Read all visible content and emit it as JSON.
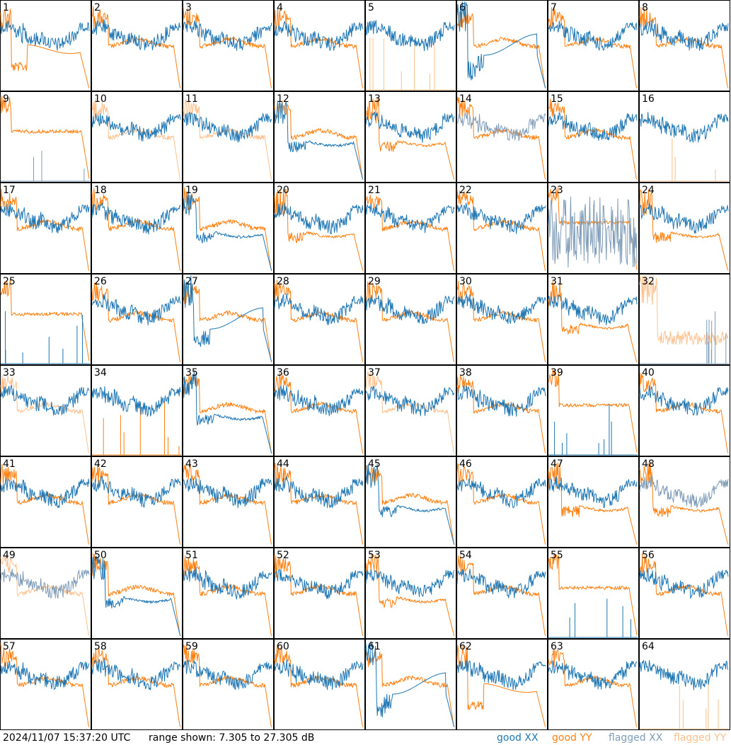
{
  "footer": {
    "timestamp": "2024/11/07 15:37:20 UTC",
    "range": "range shown: 7.305 to 27.305 dB"
  },
  "legend": [
    {
      "label": "good",
      "pol": "XX",
      "color": "#1f77b4"
    },
    {
      "label": "good",
      "pol": "YY",
      "color": "#ff7f0e"
    },
    {
      "label": "flagged",
      "pol": "XX",
      "color": "#7f9cb8"
    },
    {
      "label": "flagged",
      "pol": "YY",
      "color": "#ffc08c"
    }
  ],
  "colors": {
    "good_xx": "#1f77b4",
    "good_yy": "#ff7f0e",
    "flagged_xx": "#7f9cb8",
    "flagged_yy": "#ffc08c"
  },
  "chart_data": {
    "type": "line",
    "grid": "8x8 small multiples",
    "y_range_db": [
      7.305,
      27.305
    ],
    "panels": [
      {
        "label": "1",
        "xx": "good",
        "yy": "good",
        "xx_profile": "normal",
        "yy_profile": "dip_low"
      },
      {
        "label": "2",
        "xx": "good",
        "yy": "good",
        "xx_profile": "normal",
        "yy_profile": "normal"
      },
      {
        "label": "3",
        "xx": "good",
        "yy": "good",
        "xx_profile": "normal",
        "yy_profile": "normal"
      },
      {
        "label": "4",
        "xx": "good",
        "yy": "good",
        "xx_profile": "normal",
        "yy_profile": "normal"
      },
      {
        "label": "5",
        "xx": "good",
        "yy": "flagged",
        "xx_profile": "normal",
        "yy_profile": "spikes"
      },
      {
        "label": "6",
        "xx": "good",
        "yy": "good",
        "xx_profile": "dip_low",
        "yy_profile": "normal"
      },
      {
        "label": "7",
        "xx": "good",
        "yy": "good",
        "xx_profile": "normal",
        "yy_profile": "normal"
      },
      {
        "label": "8",
        "xx": "good",
        "yy": "good",
        "xx_profile": "normal",
        "yy_profile": "normal"
      },
      {
        "label": "9",
        "xx": "flagged",
        "yy": "good",
        "xx_profile": "spikes",
        "yy_profile": "flat_high"
      },
      {
        "label": "10",
        "xx": "good",
        "yy": "flagged",
        "xx_profile": "normal",
        "yy_profile": "normal"
      },
      {
        "label": "11",
        "xx": "good",
        "yy": "flagged",
        "xx_profile": "normal",
        "yy_profile": "normal"
      },
      {
        "label": "12",
        "xx": "good",
        "yy": "good",
        "xx_profile": "dip_mid",
        "yy_profile": "normal"
      },
      {
        "label": "13",
        "xx": "good",
        "yy": "good",
        "xx_profile": "normal",
        "yy_profile": "dip_mid"
      },
      {
        "label": "14",
        "xx": "flagged",
        "yy": "good",
        "xx_profile": "normal",
        "yy_profile": "normal"
      },
      {
        "label": "15",
        "xx": "good",
        "yy": "good",
        "xx_profile": "normal",
        "yy_profile": "normal"
      },
      {
        "label": "16",
        "xx": "good",
        "yy": "flagged",
        "xx_profile": "normal",
        "yy_profile": "spikes"
      },
      {
        "label": "17",
        "xx": "good",
        "yy": "good",
        "xx_profile": "normal",
        "yy_profile": "normal"
      },
      {
        "label": "18",
        "xx": "good",
        "yy": "good",
        "xx_profile": "normal",
        "yy_profile": "normal"
      },
      {
        "label": "19",
        "xx": "good",
        "yy": "good",
        "xx_profile": "dip_mid",
        "yy_profile": "normal"
      },
      {
        "label": "20",
        "xx": "good",
        "yy": "good",
        "xx_profile": "normal",
        "yy_profile": "dip_mid"
      },
      {
        "label": "21",
        "xx": "good",
        "yy": "good",
        "xx_profile": "normal",
        "yy_profile": "normal"
      },
      {
        "label": "22",
        "xx": "good",
        "yy": "good",
        "xx_profile": "normal",
        "yy_profile": "normal"
      },
      {
        "label": "23",
        "xx": "flagged",
        "yy": "good",
        "xx_profile": "noisy",
        "yy_profile": "flat_high"
      },
      {
        "label": "24",
        "xx": "good",
        "yy": "good",
        "xx_profile": "normal",
        "yy_profile": "dip_mid"
      },
      {
        "label": "25",
        "xx": "good",
        "yy": "good",
        "xx_profile": "spikes",
        "yy_profile": "flat_high"
      },
      {
        "label": "26",
        "xx": "good",
        "yy": "good",
        "xx_profile": "normal",
        "yy_profile": "normal"
      },
      {
        "label": "27",
        "xx": "good",
        "yy": "good",
        "xx_profile": "dip_low",
        "yy_profile": "normal"
      },
      {
        "label": "28",
        "xx": "good",
        "yy": "good",
        "xx_profile": "normal",
        "yy_profile": "normal"
      },
      {
        "label": "29",
        "xx": "good",
        "yy": "good",
        "xx_profile": "normal",
        "yy_profile": "normal"
      },
      {
        "label": "30",
        "xx": "good",
        "yy": "good",
        "xx_profile": "normal",
        "yy_profile": "normal"
      },
      {
        "label": "31",
        "xx": "good",
        "yy": "good",
        "xx_profile": "normal",
        "yy_profile": "dip_mid"
      },
      {
        "label": "32",
        "xx": "flagged",
        "yy": "flagged",
        "xx_profile": "spikes",
        "yy_profile": "noisy_mid"
      },
      {
        "label": "33",
        "xx": "good",
        "yy": "flagged",
        "xx_profile": "normal",
        "yy_profile": "normal"
      },
      {
        "label": "34",
        "xx": "good",
        "yy": "good",
        "xx_profile": "normal",
        "yy_profile": "spikes"
      },
      {
        "label": "35",
        "xx": "good",
        "yy": "good",
        "xx_profile": "dip_mid",
        "yy_profile": "normal"
      },
      {
        "label": "36",
        "xx": "good",
        "yy": "good",
        "xx_profile": "normal",
        "yy_profile": "normal"
      },
      {
        "label": "37",
        "xx": "good",
        "yy": "flagged",
        "xx_profile": "normal",
        "yy_profile": "normal"
      },
      {
        "label": "38",
        "xx": "good",
        "yy": "good",
        "xx_profile": "normal",
        "yy_profile": "normal"
      },
      {
        "label": "39",
        "xx": "good",
        "yy": "good",
        "xx_profile": "spikes",
        "yy_profile": "flat_high"
      },
      {
        "label": "40",
        "xx": "good",
        "yy": "good",
        "xx_profile": "normal",
        "yy_profile": "normal"
      },
      {
        "label": "41",
        "xx": "good",
        "yy": "good",
        "xx_profile": "normal",
        "yy_profile": "normal"
      },
      {
        "label": "42",
        "xx": "good",
        "yy": "good",
        "xx_profile": "normal",
        "yy_profile": "normal"
      },
      {
        "label": "43",
        "xx": "good",
        "yy": "good",
        "xx_profile": "normal",
        "yy_profile": "normal"
      },
      {
        "label": "44",
        "xx": "good",
        "yy": "good",
        "xx_profile": "normal",
        "yy_profile": "normal"
      },
      {
        "label": "45",
        "xx": "good",
        "yy": "good",
        "xx_profile": "dip_mid",
        "yy_profile": "normal"
      },
      {
        "label": "46",
        "xx": "good",
        "yy": "good",
        "xx_profile": "normal",
        "yy_profile": "normal"
      },
      {
        "label": "47",
        "xx": "good",
        "yy": "good",
        "xx_profile": "normal",
        "yy_profile": "dip_mid"
      },
      {
        "label": "48",
        "xx": "flagged",
        "yy": "good",
        "xx_profile": "normal",
        "yy_profile": "dip_mid"
      },
      {
        "label": "49",
        "xx": "flagged",
        "yy": "flagged",
        "xx_profile": "normal",
        "yy_profile": "normal"
      },
      {
        "label": "50",
        "xx": "good",
        "yy": "good",
        "xx_profile": "dip_mid",
        "yy_profile": "normal"
      },
      {
        "label": "51",
        "xx": "good",
        "yy": "good",
        "xx_profile": "normal",
        "yy_profile": "normal"
      },
      {
        "label": "52",
        "xx": "good",
        "yy": "good",
        "xx_profile": "normal",
        "yy_profile": "normal"
      },
      {
        "label": "53",
        "xx": "good",
        "yy": "good",
        "xx_profile": "normal",
        "yy_profile": "dip_mid"
      },
      {
        "label": "54",
        "xx": "good",
        "yy": "good",
        "xx_profile": "normal",
        "yy_profile": "normal"
      },
      {
        "label": "55",
        "xx": "good",
        "yy": "good",
        "xx_profile": "spikes",
        "yy_profile": "flat_high"
      },
      {
        "label": "56",
        "xx": "good",
        "yy": "good",
        "xx_profile": "normal",
        "yy_profile": "normal"
      },
      {
        "label": "57",
        "xx": "good",
        "yy": "good",
        "xx_profile": "normal",
        "yy_profile": "normal"
      },
      {
        "label": "58",
        "xx": "good",
        "yy": "good",
        "xx_profile": "normal",
        "yy_profile": "normal"
      },
      {
        "label": "59",
        "xx": "good",
        "yy": "good",
        "xx_profile": "normal",
        "yy_profile": "normal"
      },
      {
        "label": "60",
        "xx": "good",
        "yy": "good",
        "xx_profile": "normal",
        "yy_profile": "normal"
      },
      {
        "label": "61",
        "xx": "good",
        "yy": "good",
        "xx_profile": "dip_low",
        "yy_profile": "normal"
      },
      {
        "label": "62",
        "xx": "good",
        "yy": "good",
        "xx_profile": "normal",
        "yy_profile": "dip_low"
      },
      {
        "label": "63",
        "xx": "good",
        "yy": "good",
        "xx_profile": "normal",
        "yy_profile": "normal"
      },
      {
        "label": "64",
        "xx": "good",
        "yy": "flagged",
        "xx_profile": "normal",
        "yy_profile": "spikes"
      }
    ]
  }
}
